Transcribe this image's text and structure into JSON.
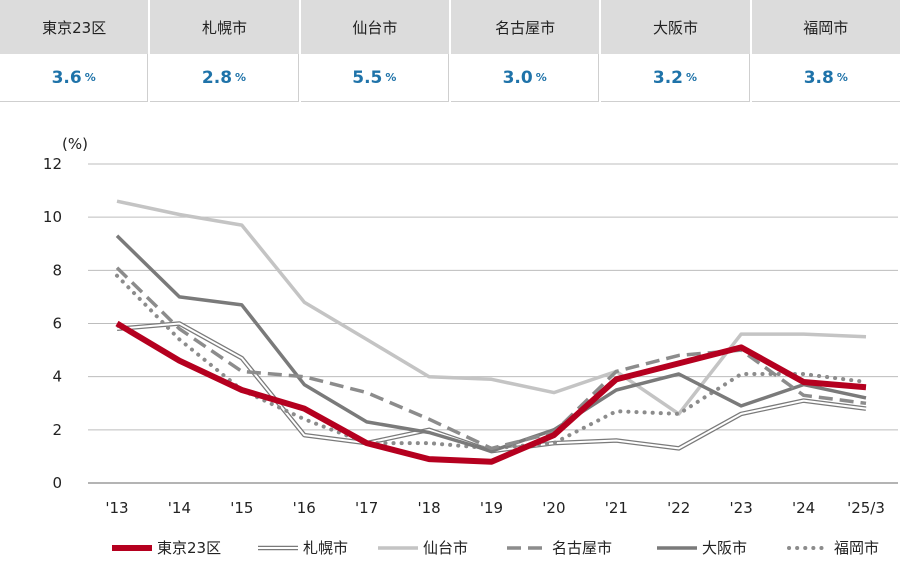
{
  "summary": [
    {
      "city": "東京23区",
      "value": "3.6",
      "unit": "%"
    },
    {
      "city": "札幌市",
      "value": "2.8",
      "unit": "%"
    },
    {
      "city": "仙台市",
      "value": "5.5",
      "unit": "%"
    },
    {
      "city": "名古屋市",
      "value": "3.0",
      "unit": "%"
    },
    {
      "city": "大阪市",
      "value": "3.2",
      "unit": "%"
    },
    {
      "city": "福岡市",
      "value": "3.8",
      "unit": "%"
    }
  ],
  "chart_data": {
    "type": "line",
    "title": "",
    "xlabel": "",
    "ylabel": "(%)",
    "categories": [
      "'13",
      "'14",
      "'15",
      "'16",
      "'17",
      "'18",
      "'19",
      "'20",
      "'21",
      "'22",
      "'23",
      "'24",
      "'25/3"
    ],
    "ylim": [
      0,
      12
    ],
    "yticks": [
      0,
      2,
      4,
      6,
      8,
      10,
      12
    ],
    "grid": true,
    "legend": "bottom",
    "series": [
      {
        "name": "東京23区",
        "style": "thick-solid",
        "color": "#b5001f",
        "values": [
          6.0,
          4.6,
          3.5,
          2.8,
          1.5,
          0.9,
          0.8,
          1.8,
          3.9,
          4.5,
          5.1,
          3.8,
          3.6
        ]
      },
      {
        "name": "札幌市",
        "style": "double-line",
        "color": "#7a7a7a",
        "values": [
          5.8,
          6.0,
          4.7,
          1.8,
          1.5,
          2.0,
          1.2,
          1.5,
          1.6,
          1.3,
          2.6,
          3.1,
          2.8
        ]
      },
      {
        "name": "仙台市",
        "style": "solid-light",
        "color": "#c4c4c4",
        "values": [
          10.6,
          10.1,
          9.7,
          6.8,
          5.4,
          4.0,
          3.9,
          3.4,
          4.2,
          2.6,
          5.6,
          5.6,
          5.5
        ]
      },
      {
        "name": "名古屋市",
        "style": "dashed",
        "color": "#8c8c8c",
        "values": [
          8.1,
          5.8,
          4.2,
          4.0,
          3.4,
          2.4,
          1.3,
          1.9,
          4.2,
          4.8,
          5.0,
          3.3,
          3.0
        ]
      },
      {
        "name": "大阪市",
        "style": "solid-dark",
        "color": "#7a7a7a",
        "values": [
          9.3,
          7.0,
          6.7,
          3.7,
          2.3,
          1.9,
          1.2,
          2.0,
          3.5,
          4.1,
          2.9,
          3.7,
          3.2
        ]
      },
      {
        "name": "福岡市",
        "style": "dotted",
        "color": "#8c8c8c",
        "values": [
          7.8,
          5.4,
          3.5,
          2.4,
          1.5,
          1.5,
          1.3,
          1.5,
          2.7,
          2.6,
          4.1,
          4.1,
          3.8
        ]
      }
    ]
  }
}
